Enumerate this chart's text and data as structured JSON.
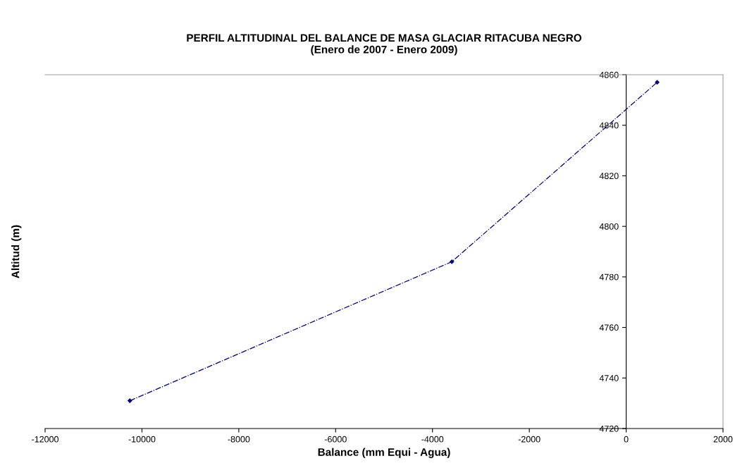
{
  "chart_data": {
    "type": "line",
    "title": "PERFIL ALTITUDINAL DEL BALANCE DE MASA GLACIAR RITACUBA NEGRO\n(Enero de 2007 - Enero 2009)",
    "xlabel": "Balance (mm Equi - Agua)",
    "ylabel": "Altitud (m)",
    "series": [
      {
        "color": "#000080",
        "x": [
          -10250,
          -3600,
          640
        ],
        "values": [
          4731,
          4786,
          4857
        ]
      }
    ],
    "xlim": [
      -12000,
      2000
    ],
    "xticks": [
      -12000,
      -10000,
      -8000,
      -6000,
      -4000,
      -2000,
      0,
      2000
    ],
    "ylim": [
      4720,
      4860
    ],
    "yticks": [
      4720,
      4740,
      4760,
      4780,
      4800,
      4820,
      4840,
      4860
    ],
    "marker": "diamond",
    "line_style": "dashdot",
    "grid": false,
    "legend": false
  }
}
